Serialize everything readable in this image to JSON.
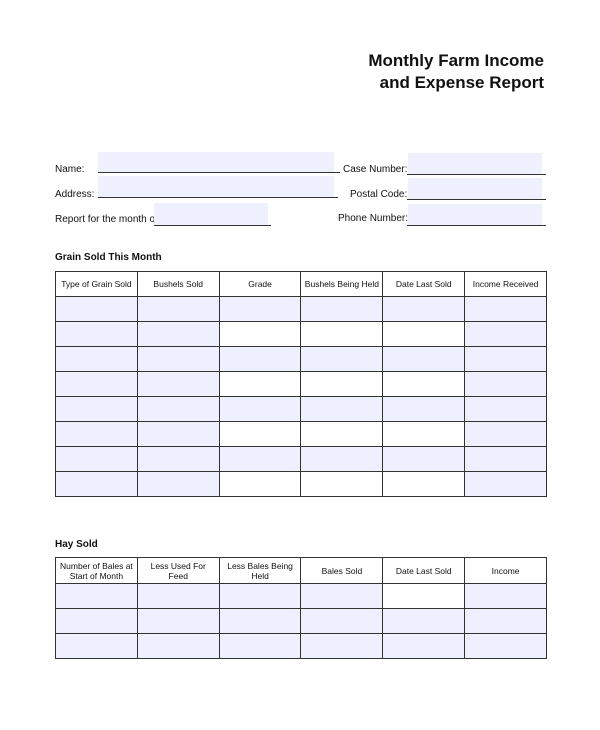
{
  "title": [
    "Monthly Farm Income",
    "and Expense Report"
  ],
  "form": {
    "name": "Name:",
    "case_number": "Case Number:",
    "address": "Address:",
    "postal_code": "Postal Code:",
    "report_month": "Report for the month of",
    "phone_number": "Phone Number:"
  },
  "grain": {
    "heading": "Grain Sold This Month",
    "columns": [
      "Type of Grain Sold",
      "Bushels Sold",
      "Grade",
      "Bushels Being Held",
      "Date Last Sold",
      "Income Received"
    ],
    "row_count": 8
  },
  "hay": {
    "heading": "Hay Sold",
    "columns": [
      "Number of Bales at Start of Month",
      "Less Used For Feed",
      "Less Bales Being Held",
      "Bales Sold",
      "Date Last Sold",
      "Income"
    ],
    "row_count": 3
  },
  "colors": {
    "field_fill": "#eef0fd",
    "border": "#333333"
  }
}
